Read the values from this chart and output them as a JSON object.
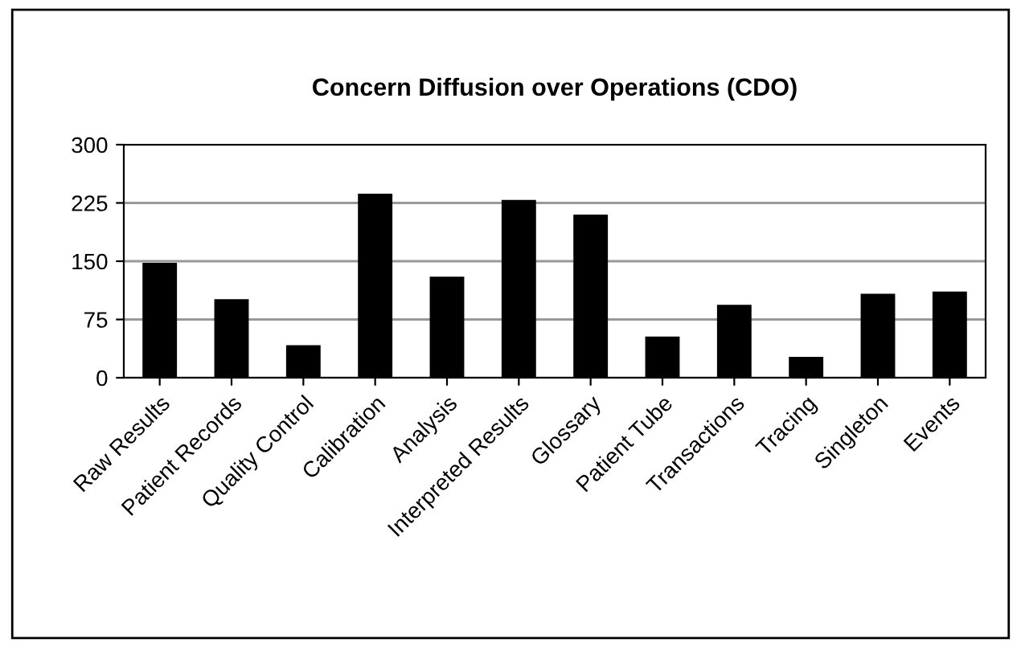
{
  "chart_data": {
    "type": "bar",
    "title": "Concern Diffusion over Operations (CDO)",
    "categories": [
      "Raw Results",
      "Patient Records",
      "Quality Control",
      "Calibration",
      "Analysis",
      "Interpreted Results",
      "Glossary",
      "Patient Tube",
      "Transactions",
      "Tracing",
      "Singleton",
      "Events"
    ],
    "values": [
      148,
      101,
      42,
      237,
      130,
      229,
      210,
      53,
      94,
      27,
      108,
      111
    ],
    "color": "#000000",
    "ylim": [
      0,
      300
    ],
    "yticks": [
      0,
      75,
      150,
      225,
      300
    ],
    "grid": "y",
    "legend": false
  }
}
